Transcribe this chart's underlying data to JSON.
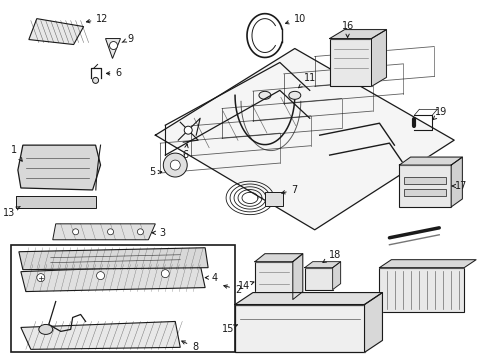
{
  "background_color": "#ffffff",
  "fig_width": 4.89,
  "fig_height": 3.6,
  "dpi": 100,
  "line_color": "#1a1a1a",
  "label_fontsize": 7,
  "label_color": "#1a1a1a"
}
